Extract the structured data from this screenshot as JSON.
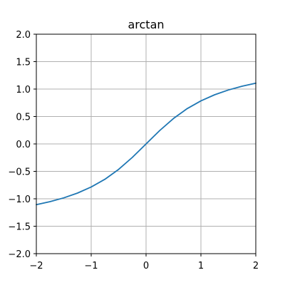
{
  "chart_data": {
    "type": "line",
    "title": "arctan",
    "xlabel": "",
    "ylabel": "",
    "xlim": [
      -2,
      2
    ],
    "ylim": [
      -2,
      2
    ],
    "x_ticks": [
      -2,
      -1,
      0,
      1,
      2
    ],
    "x_tick_labels": [
      "−2",
      "−1",
      "0",
      "1",
      "2"
    ],
    "y_ticks": [
      -2.0,
      -1.5,
      -1.0,
      -0.5,
      0.0,
      0.5,
      1.0,
      1.5,
      2.0
    ],
    "y_tick_labels": [
      "−2.0",
      "−1.5",
      "−1.0",
      "−0.5",
      "0.0",
      "0.5",
      "1.0",
      "1.5",
      "2.0"
    ],
    "grid": true,
    "series": [
      {
        "color": "#1f77b4",
        "x": [
          -2.0,
          -1.75,
          -1.5,
          -1.25,
          -1.0,
          -0.75,
          -0.5,
          -0.25,
          0.0,
          0.25,
          0.5,
          0.75,
          1.0,
          1.25,
          1.5,
          1.75,
          2.0
        ],
        "y": [
          -1.107,
          -1.052,
          -0.983,
          -0.896,
          -0.785,
          -0.644,
          -0.464,
          -0.245,
          0.0,
          0.245,
          0.464,
          0.644,
          0.785,
          0.896,
          0.983,
          1.052,
          1.107
        ]
      }
    ]
  }
}
